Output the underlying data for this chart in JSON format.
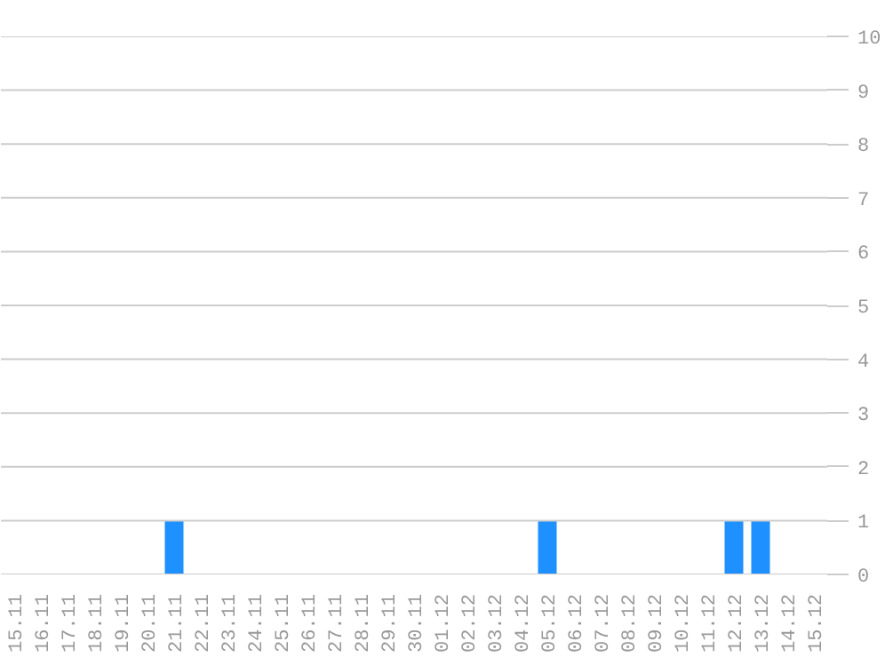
{
  "chart_data": {
    "type": "bar",
    "categories": [
      "15.11",
      "16.11",
      "17.11",
      "18.11",
      "19.11",
      "20.11",
      "21.11",
      "22.11",
      "23.11",
      "24.11",
      "25.11",
      "26.11",
      "27.11",
      "28.11",
      "29.11",
      "30.11",
      "01.12",
      "02.12",
      "03.12",
      "04.12",
      "05.12",
      "06.12",
      "07.12",
      "08.12",
      "09.12",
      "10.12",
      "11.12",
      "12.12",
      "13.12",
      "14.12",
      "15.12"
    ],
    "values": [
      0,
      0,
      0,
      0,
      0,
      0,
      1,
      0,
      0,
      0,
      0,
      0,
      0,
      0,
      0,
      0,
      0,
      0,
      0,
      0,
      1,
      0,
      0,
      0,
      0,
      0,
      0,
      1,
      1,
      0,
      0
    ],
    "color": "#1e90ff",
    "ylim": [
      0,
      10
    ],
    "yticks": [
      0,
      1,
      2,
      3,
      4,
      5,
      6,
      7,
      8,
      9,
      10
    ],
    "grid": "y"
  }
}
